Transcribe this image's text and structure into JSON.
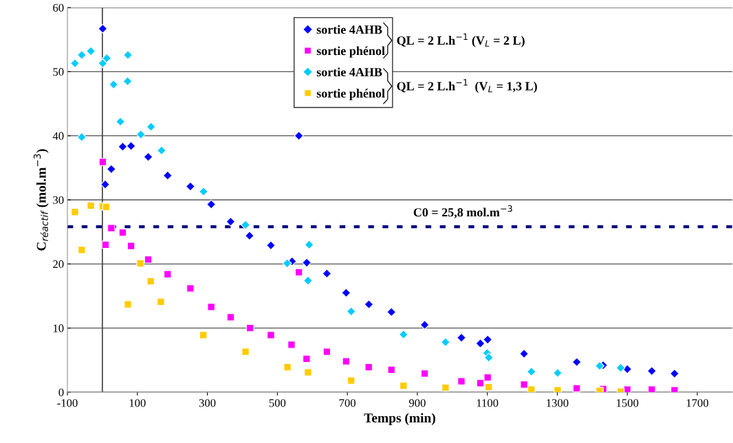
{
  "chart_data": {
    "type": "scatter",
    "xlabel": "Temps (min)",
    "ylabel": "C$_{réactif}$ (mol.m$^{−3}$)",
    "xlim": [
      -100,
      1800
    ],
    "ylim": [
      0,
      60
    ],
    "xticks": [
      -100,
      100,
      300,
      500,
      700,
      900,
      1100,
      1300,
      1500,
      1700
    ],
    "yticks": [
      0,
      10,
      20,
      30,
      40,
      50,
      60
    ],
    "grid": "y",
    "legend": "top",
    "series": [
      {
        "name": "sortie 4AHB",
        "color": "#0000ff",
        "marker": "diamond",
        "x": [
          1,
          8,
          25.5,
          58,
          82,
          131,
          186.5,
          251.5,
          311,
          366.5,
          420.5,
          481.5,
          542,
          561.5,
          584,
          641.5,
          696.5,
          761.5,
          826,
          921,
          1026,
          1080,
          1101,
          1205,
          1355.5,
          1431,
          1500,
          1570,
          1635
        ],
        "values": [
          56.7,
          32.4,
          34.8,
          38.3,
          38.4,
          36.7,
          33.8,
          32.1,
          29.3,
          26.6,
          24.4,
          22.9,
          20.4,
          40.0,
          20.2,
          18.5,
          15.5,
          13.7,
          12.5,
          10.5,
          8.5,
          7.6,
          8.2,
          6.0,
          4.7,
          4.2,
          3.6,
          3.3,
          2.9
        ]
      },
      {
        "name": "sortie phénol",
        "color": "#ff00ff",
        "marker": "square",
        "x": [
          1,
          9,
          25.5,
          58,
          82,
          131,
          186.5,
          251.5,
          311,
          366.5,
          422,
          481.5,
          540.5,
          561.5,
          583.5,
          641.5,
          696.5,
          761,
          826,
          921,
          1026,
          1080,
          1101,
          1205,
          1355.5,
          1431,
          1500,
          1570,
          1635
        ],
        "values": [
          35.9,
          23.0,
          25.6,
          24.9,
          22.8,
          20.7,
          18.4,
          16.2,
          13.3,
          11.7,
          10.0,
          8.9,
          7.4,
          18.7,
          5.2,
          6.3,
          4.8,
          3.9,
          3.5,
          2.9,
          1.7,
          1.4,
          2.3,
          1.2,
          0.6,
          0.5,
          0.4,
          0.4,
          0.3
        ]
      },
      {
        "name": "sortie 4AHB",
        "color": "#00ccff",
        "marker": "diamond",
        "x": [
          -78.5,
          -59,
          -33,
          1,
          12.5,
          73,
          32,
          72,
          -59,
          51.5,
          110,
          139,
          169,
          289,
          409,
          528,
          591,
          587.5,
          711,
          860.5,
          980.5,
          1099.5,
          1104,
          1226,
          1301,
          1421,
          1481
        ],
        "values": [
          51.3,
          52.6,
          53.2,
          51.3,
          52.1,
          52.6,
          48.0,
          48.5,
          39.8,
          42.2,
          40.2,
          41.4,
          37.7,
          31.3,
          26.1,
          20.1,
          23.0,
          17.4,
          12.6,
          9.0,
          7.8,
          6.1,
          5.4,
          3.2,
          3.0,
          4.1,
          3.8
        ]
      },
      {
        "name": "sortie phénol",
        "color": "#ffcc00",
        "marker": "square",
        "x": [
          -78.5,
          -33,
          1,
          11,
          -59,
          108.5,
          138,
          73,
          167,
          288.5,
          409,
          529,
          587.5,
          711,
          860.5,
          980.5,
          1104,
          1226,
          1301,
          1421,
          1481
        ],
        "values": [
          28.1,
          29.1,
          29.0,
          28.9,
          22.2,
          20.1,
          17.3,
          13.7,
          14.1,
          8.9,
          6.3,
          3.9,
          3.1,
          1.8,
          1.0,
          0.7,
          0.8,
          0.4,
          0.3,
          0.2,
          0.1
        ]
      }
    ],
    "ref_lines": [
      {
        "axis": "x",
        "value": 0,
        "label": null,
        "color": "#404040",
        "line_style": "solid"
      },
      {
        "axis": "y",
        "value": 25.8,
        "label": "C0 = 25,8 mol.m$^{−3}$",
        "color": "#000080",
        "line_style": "dotted"
      }
    ],
    "annotations": [
      "QL = 2 L.h$^{−1}$ (V$_{L}$ = 2 L)",
      "QL = 2 L.h$^{−1}$  (V$_{L}$ = 1,3 L)"
    ]
  }
}
